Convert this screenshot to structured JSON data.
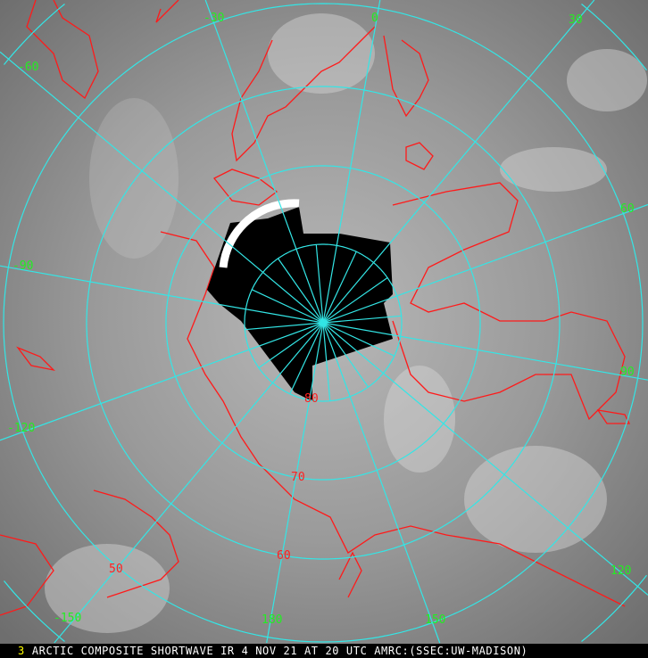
{
  "image": {
    "caption_number": "3",
    "caption": "ARCTIC COMPOSITE SHORTWAVE IR 4 NOV 21 AT 20 UTC AMRC:(SSEC:UW-MADISON)",
    "projection": "polar stereographic, north pole centered",
    "colors": {
      "graticule": "#33e6e6",
      "coastline": "#ff1a1a",
      "longitude_labels": "#22ee22",
      "latitude_labels": "#ff2020",
      "no_data": "#000000"
    }
  },
  "grid": {
    "longitude_labels": [
      "-60",
      "-30",
      "0",
      "30",
      "60",
      "90",
      "120",
      "150",
      "180",
      "-150",
      "-120",
      "-90"
    ],
    "latitude_labels": [
      "80",
      "70",
      "60",
      "50"
    ]
  }
}
